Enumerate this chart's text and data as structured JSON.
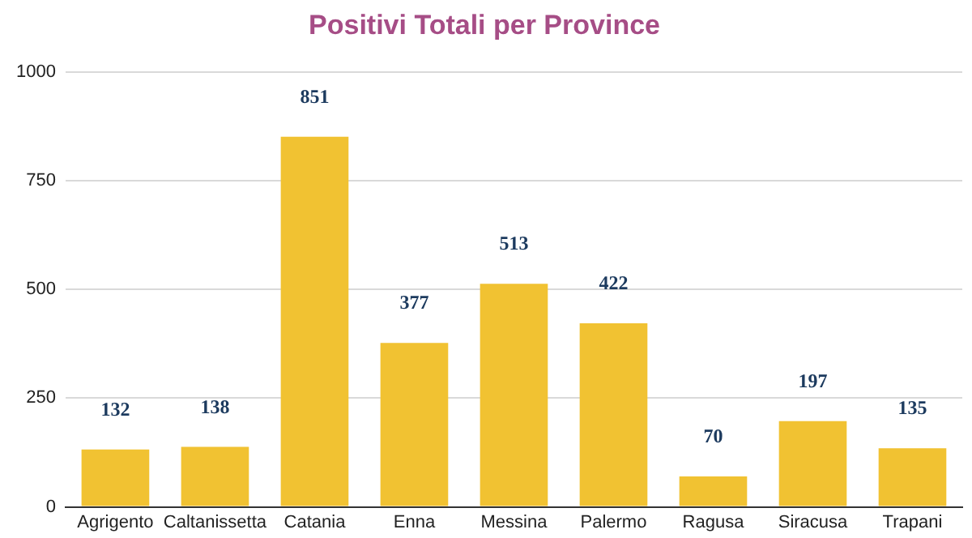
{
  "chart_data": {
    "type": "bar",
    "title": "Positivi Totali per Province",
    "categories": [
      "Agrigento",
      "Caltanissetta",
      "Catania",
      "Enna",
      "Messina",
      "Palermo",
      "Ragusa",
      "Siracusa",
      "Trapani"
    ],
    "values": [
      132,
      138,
      851,
      377,
      513,
      422,
      70,
      197,
      135
    ],
    "color": "#f1c232",
    "ylim": [
      0,
      1000
    ],
    "yticks": [
      0,
      250,
      500,
      750,
      1000
    ],
    "grid": "y",
    "data_labels": true
  }
}
